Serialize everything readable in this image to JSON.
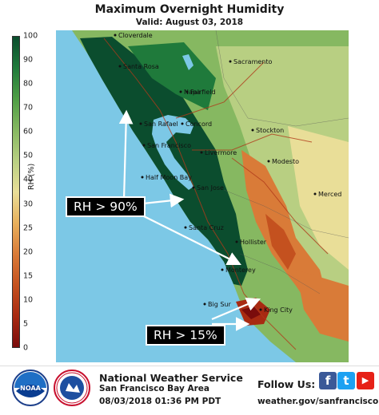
{
  "header": {
    "title": "Maximum Overnight Humidity",
    "valid": "Valid: August 03, 2018"
  },
  "legend": {
    "label": "RH (%)",
    "ticks": [
      "100",
      "90",
      "80",
      "70",
      "60",
      "50",
      "40",
      "30",
      "25",
      "20",
      "15",
      "10",
      "5",
      "0"
    ],
    "colors": [
      "#0b4d2e",
      "#1f7a3b",
      "#4e9e45",
      "#86b861",
      "#b8cf82",
      "#e9de98",
      "#e8b05c",
      "#d97b38",
      "#c4511f",
      "#a82a12",
      "#7a0c0c"
    ]
  },
  "map": {
    "ocean_color": "#7cc8e6",
    "cities": [
      "Cloverdale",
      "Santa Rosa",
      "Sacramento",
      "Napa",
      "Fairfield",
      "San Rafael",
      "Concord",
      "Stockton",
      "San Francisco",
      "Livermore",
      "Modesto",
      "Half Moon Bay",
      "San Jose",
      "Merced",
      "Santa Cruz",
      "Hollister",
      "Monterey",
      "Big Sur",
      "King City"
    ],
    "callouts": [
      {
        "text": "RH > 90%"
      },
      {
        "text": "RH > 15%"
      }
    ]
  },
  "footer": {
    "org": "National Weather Service",
    "office": "San Francisco Bay Area",
    "timestamp": "08/03/2018 01:36 PM PDT",
    "follow": "Follow Us:",
    "website": "weather.gov/sanfrancisco",
    "noaa_logo": "NOAA",
    "nws_logo": "NATIONAL WEATHER SERVICE",
    "social": [
      {
        "icon": "facebook-icon",
        "glyph": "f",
        "color": "#3b5998"
      },
      {
        "icon": "twitter-icon",
        "glyph": "t",
        "color": "#1da1f2"
      },
      {
        "icon": "youtube-icon",
        "glyph": "▶",
        "color": "#e62117"
      }
    ]
  }
}
